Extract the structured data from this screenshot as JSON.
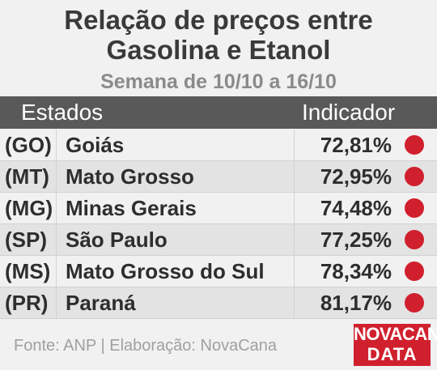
{
  "chart_data": {
    "type": "table",
    "title_line1": "Relação de preços entre",
    "title_line2": "Gasolina e Etanol",
    "subtitle": "Semana de 10/10 a 16/10",
    "columns": [
      "Estados",
      "Indicador"
    ],
    "rows": [
      {
        "abbr": "(GO)",
        "name": "Goiás",
        "value_label": "72,81%",
        "value": 72.81,
        "status_color": "#d0202e"
      },
      {
        "abbr": "(MT)",
        "name": "Mato Grosso",
        "value_label": "72,95%",
        "value": 72.95,
        "status_color": "#d0202e"
      },
      {
        "abbr": "(MG)",
        "name": "Minas Gerais",
        "value_label": "74,48%",
        "value": 74.48,
        "status_color": "#d0202e"
      },
      {
        "abbr": "(SP)",
        "name": "São Paulo",
        "value_label": "77,25%",
        "value": 77.25,
        "status_color": "#d0202e"
      },
      {
        "abbr": "(MS)",
        "name": "Mato Grosso do Sul",
        "value_label": "78,34%",
        "value": 78.34,
        "status_color": "#d0202e"
      },
      {
        "abbr": "(PR)",
        "name": "Paraná",
        "value_label": "81,17%",
        "value": 81.17,
        "status_color": "#d0202e"
      }
    ],
    "source": "Fonte: ANP | Elaboração: NovaCana"
  },
  "logo": {
    "line1": "NOVACANA",
    "line2": "DATA",
    "color": "#d0202e"
  }
}
